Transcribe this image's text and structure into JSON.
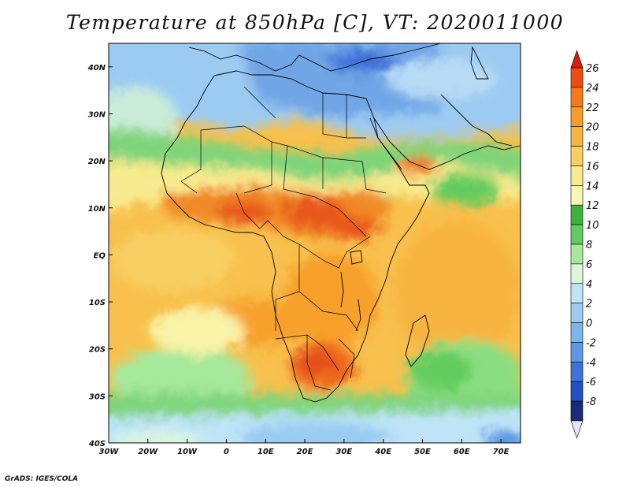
{
  "title": "Temperature at 850hPa [C], VT: 2020011000",
  "credit": "GrADS: IGES/COLA",
  "map": {
    "lon_range": [
      -30,
      75
    ],
    "lat_range": [
      -40,
      45
    ],
    "lon_ticks": [
      {
        "value": -30,
        "label": "30W"
      },
      {
        "value": -20,
        "label": "20W"
      },
      {
        "value": -10,
        "label": "10W"
      },
      {
        "value": 0,
        "label": "0"
      },
      {
        "value": 10,
        "label": "10E"
      },
      {
        "value": 20,
        "label": "20E"
      },
      {
        "value": 30,
        "label": "30E"
      },
      {
        "value": 40,
        "label": "40E"
      },
      {
        "value": 50,
        "label": "50E"
      },
      {
        "value": 60,
        "label": "60E"
      },
      {
        "value": 70,
        "label": "70E"
      }
    ],
    "lat_ticks": [
      {
        "value": 40,
        "label": "40N"
      },
      {
        "value": 30,
        "label": "30N"
      },
      {
        "value": 20,
        "label": "20N"
      },
      {
        "value": 10,
        "label": "10N"
      },
      {
        "value": 0,
        "label": "EQ"
      },
      {
        "value": -10,
        "label": "10S"
      },
      {
        "value": -20,
        "label": "20S"
      },
      {
        "value": -30,
        "label": "30S"
      },
      {
        "value": -40,
        "label": "40S"
      }
    ]
  },
  "colorbar": {
    "labels": [
      "26",
      "24",
      "22",
      "20",
      "18",
      "16",
      "14",
      "12",
      "10",
      "8",
      "6",
      "4",
      "2",
      "0",
      "-2",
      "-4",
      "-6",
      "-8"
    ],
    "colors": [
      "#d21f0c",
      "#f04a10",
      "#f77a17",
      "#f79c25",
      "#f8b440",
      "#f8cf62",
      "#f8ea8e",
      "#f9f7b6",
      "#3cb33c",
      "#63cc5f",
      "#a6e89c",
      "#dcf6dc",
      "#bfe4f8",
      "#9accf2",
      "#7cb4ec",
      "#5c98e4",
      "#3c72da",
      "#2150c4",
      "#1a2b7e",
      "#e6e6fa"
    ]
  }
}
